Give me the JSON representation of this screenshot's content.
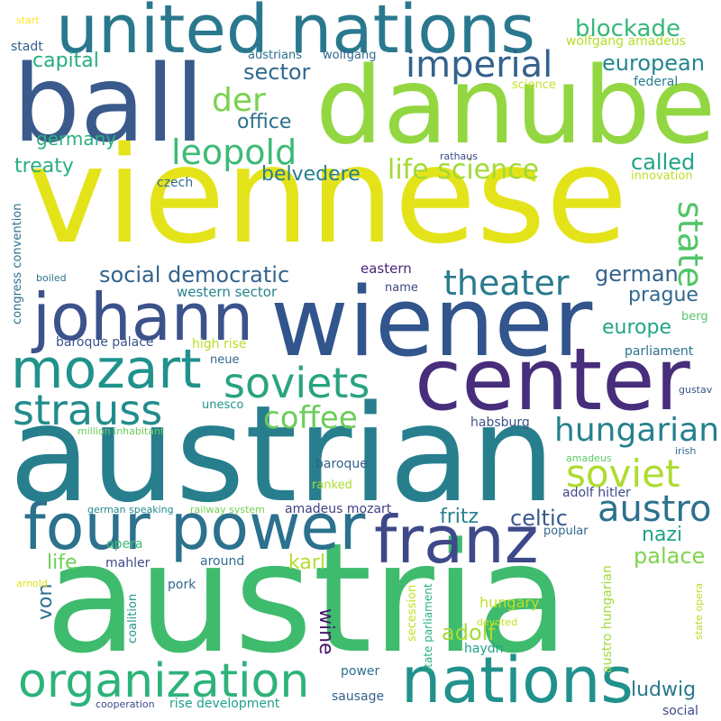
{
  "words": [
    {
      "text": "viennese",
      "color": "#e4e31a"
    },
    {
      "text": "austria",
      "color": "#3fbb6e"
    },
    {
      "text": "austrian",
      "color": "#277f8e"
    },
    {
      "text": "danube",
      "color": "#92d741"
    },
    {
      "text": "wiener",
      "color": "#31558c"
    },
    {
      "text": "ball",
      "color": "#3a5a8c"
    },
    {
      "text": "united nations",
      "color": "#2a788e"
    },
    {
      "text": "center",
      "color": "#472d7b"
    },
    {
      "text": "nations",
      "color": "#21918c"
    },
    {
      "text": "four power",
      "color": "#2c718e"
    },
    {
      "text": "franz",
      "color": "#3e4989"
    },
    {
      "text": "johann",
      "color": "#3b528b"
    },
    {
      "text": "mozart",
      "color": "#20928c"
    },
    {
      "text": "organization",
      "color": "#2db37a"
    },
    {
      "text": "soviets",
      "color": "#2aa380"
    },
    {
      "text": "strauss",
      "color": "#228c8d"
    },
    {
      "text": "imperial",
      "color": "#33628d"
    },
    {
      "text": "leopold",
      "color": "#3cbb75"
    },
    {
      "text": "soviet",
      "color": "#addc30"
    },
    {
      "text": "theater",
      "color": "#297b8e"
    },
    {
      "text": "austro",
      "color": "#2c728e"
    },
    {
      "text": "hungarian",
      "color": "#26818e"
    },
    {
      "text": "coffee",
      "color": "#6ccd5a"
    },
    {
      "text": "der",
      "color": "#7ad151"
    },
    {
      "text": "life science",
      "color": "#a2da37"
    },
    {
      "text": "state",
      "color": "#52c569"
    },
    {
      "text": "blockade",
      "color": "#35b779"
    },
    {
      "text": "european",
      "color": "#24868e"
    },
    {
      "text": "capital",
      "color": "#26ad81"
    },
    {
      "text": "sector",
      "color": "#31688e"
    },
    {
      "text": "office",
      "color": "#2d708e"
    },
    {
      "text": "germany",
      "color": "#2ab07f"
    },
    {
      "text": "treaty",
      "color": "#28ae80"
    },
    {
      "text": "belvedere",
      "color": "#277e8e"
    },
    {
      "text": "called",
      "color": "#20a486"
    },
    {
      "text": "social democratic",
      "color": "#33638d"
    },
    {
      "text": "german",
      "color": "#33628d"
    },
    {
      "text": "prague",
      "color": "#31688e"
    },
    {
      "text": "europe",
      "color": "#21a685"
    },
    {
      "text": "celtic",
      "color": "#38598c"
    },
    {
      "text": "fritz",
      "color": "#27808e"
    },
    {
      "text": "nazi",
      "color": "#1fa188"
    },
    {
      "text": "palace",
      "color": "#7fd34e"
    },
    {
      "text": "karl",
      "color": "#b5de2b"
    },
    {
      "text": "life",
      "color": "#6ece58"
    },
    {
      "text": "adolf",
      "color": "#a5db36"
    },
    {
      "text": "wine",
      "color": "#48186a"
    },
    {
      "text": "von",
      "color": "#2d708e"
    },
    {
      "text": "ludwig",
      "color": "#29798e"
    },
    {
      "text": "hungary",
      "color": "#bddf26"
    },
    {
      "text": "eastern",
      "color": "#482677"
    },
    {
      "text": "wolfgang amadeus",
      "color": "#b5de2b"
    },
    {
      "text": "wolfgang",
      "color": "#31688e"
    },
    {
      "text": "austrians",
      "color": "#2e6f8e"
    },
    {
      "text": "stadt",
      "color": "#355f8d"
    },
    {
      "text": "start",
      "color": "#fde725"
    },
    {
      "text": "science",
      "color": "#c2df23"
    },
    {
      "text": "federal",
      "color": "#287d8e"
    },
    {
      "text": "rathaus",
      "color": "#3e4989"
    },
    {
      "text": "czech",
      "color": "#2e6e8e"
    },
    {
      "text": "innovation",
      "color": "#bddf26"
    },
    {
      "text": "congress convention",
      "color": "#2d708e"
    },
    {
      "text": "boiled",
      "color": "#2a768e"
    },
    {
      "text": "name",
      "color": "#404588"
    },
    {
      "text": "western sector",
      "color": "#26828e"
    },
    {
      "text": "berg",
      "color": "#56c667"
    },
    {
      "text": "baroque palace",
      "color": "#3b528b"
    },
    {
      "text": "high rise",
      "color": "#b8de29"
    },
    {
      "text": "parliament",
      "color": "#2c728e"
    },
    {
      "text": "neue",
      "color": "#31678e"
    },
    {
      "text": "unesco",
      "color": "#1f958b"
    },
    {
      "text": "gustav",
      "color": "#3b528b"
    },
    {
      "text": "million inhabitant",
      "color": "#6ccd5a"
    },
    {
      "text": "habsburg",
      "color": "#3b528b"
    },
    {
      "text": "irish",
      "color": "#31688e"
    },
    {
      "text": "amadeus",
      "color": "#5ec962"
    },
    {
      "text": "baroque",
      "color": "#355f8d"
    },
    {
      "text": "ranked",
      "color": "#addc30"
    },
    {
      "text": "adolf hitler",
      "color": "#3e4989"
    },
    {
      "text": "german speaking",
      "color": "#23898e"
    },
    {
      "text": "railway system",
      "color": "#75d054"
    },
    {
      "text": "amadeus mozart",
      "color": "#424086"
    },
    {
      "text": "popular",
      "color": "#31688e"
    },
    {
      "text": "austro hungarian",
      "color": "#a0da39"
    },
    {
      "text": "opera",
      "color": "#3dbc74"
    },
    {
      "text": "mahler",
      "color": "#3e4a89"
    },
    {
      "text": "around",
      "color": "#2e6d8e"
    },
    {
      "text": "state parliament",
      "color": "#2ab07f"
    },
    {
      "text": "secession",
      "color": "#c8e020"
    },
    {
      "text": "pork",
      "color": "#31678e"
    },
    {
      "text": "arnold",
      "color": "#dde318"
    },
    {
      "text": "coalition",
      "color": "#1f968b"
    },
    {
      "text": "devoted",
      "color": "#c5e021"
    },
    {
      "text": "haydn",
      "color": "#1f9f88"
    },
    {
      "text": "state opera",
      "color": "#b8de29"
    },
    {
      "text": "power",
      "color": "#2d708e"
    },
    {
      "text": "sausage",
      "color": "#33638d"
    },
    {
      "text": "cooperation",
      "color": "#3e4989"
    },
    {
      "text": "rise development",
      "color": "#1fa188"
    },
    {
      "text": "social",
      "color": "#3e4989"
    }
  ]
}
